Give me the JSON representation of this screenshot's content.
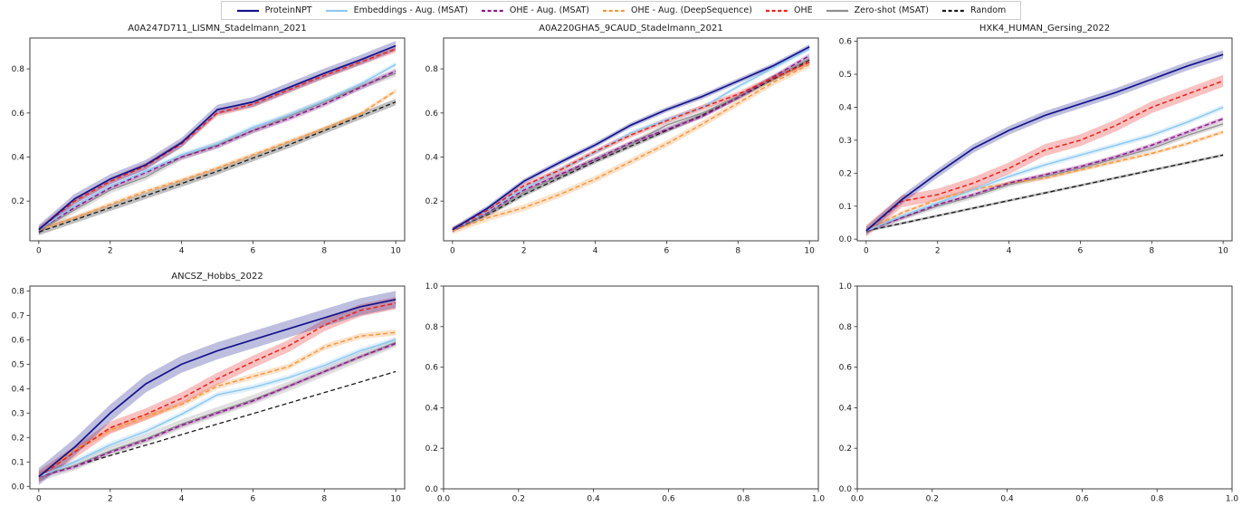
{
  "figure": {
    "background": "#ffffff",
    "text_color": "#1a1a1a",
    "spine_color": "#3d3d3d"
  },
  "legend": {
    "position": "top-center",
    "border_color": "#cccccc",
    "items": [
      {
        "label": "ProteinNPT",
        "color": "#14148c",
        "dash": false
      },
      {
        "label": "Embeddings - Aug. (MSAT)",
        "color": "#8ec9f2",
        "dash": false
      },
      {
        "label": "OHE - Aug. (MSAT)",
        "color": "#8b1a8b",
        "dash": true
      },
      {
        "label": "OHE - Aug. (DeepSequence)",
        "color": "#f8973f",
        "dash": true
      },
      {
        "label": "OHE",
        "color": "#e8221e",
        "dash": true
      },
      {
        "label": "Zero-shot (MSAT)",
        "color": "#8f8f8f",
        "dash": false
      },
      {
        "label": "Random",
        "color": "#1a1a1a",
        "dash": true
      }
    ]
  },
  "chart_data": [
    {
      "type": "line",
      "title": "A0A247D711_LISMN_Stadelmann_2021",
      "x": [
        0,
        1,
        2,
        3,
        4,
        5,
        6,
        7,
        8,
        9,
        10
      ],
      "xlim": [
        -0.25,
        10.25
      ],
      "ylim": [
        0.02,
        0.94
      ],
      "xticks": [
        0,
        2,
        4,
        6,
        8,
        10
      ],
      "xtick_labels": [
        "0",
        "2",
        "4",
        "6",
        "8",
        "10"
      ],
      "yticks": [
        0.2,
        0.4,
        0.6,
        0.8
      ],
      "ytick_labels": [
        "0.2",
        "0.4",
        "0.6",
        "0.8"
      ],
      "grid": false,
      "series": [
        {
          "name": "Random",
          "color": "#1a1a1a",
          "dash": true,
          "width": 1.3,
          "band": 0.015,
          "values": [
            0.06,
            0.115,
            0.17,
            0.225,
            0.28,
            0.335,
            0.395,
            0.455,
            0.52,
            0.585,
            0.65
          ]
        },
        {
          "name": "Zero-shot (MSAT)",
          "color": "#8f8f8f",
          "dash": false,
          "width": 1.3,
          "band": 0.015,
          "values": [
            0.065,
            0.16,
            0.25,
            0.31,
            0.4,
            0.455,
            0.52,
            0.585,
            0.65,
            0.72,
            0.78
          ]
        },
        {
          "name": "OHE - Aug. (DeepSequence)",
          "color": "#f8973f",
          "dash": true,
          "width": 1.5,
          "band": 0.01,
          "values": [
            0.07,
            0.125,
            0.185,
            0.245,
            0.295,
            0.35,
            0.41,
            0.47,
            0.53,
            0.595,
            0.7
          ]
        },
        {
          "name": "OHE - Aug. (MSAT)",
          "color": "#8b1a8b",
          "dash": true,
          "width": 1.5,
          "band": 0.012,
          "values": [
            0.07,
            0.17,
            0.26,
            0.33,
            0.4,
            0.45,
            0.52,
            0.575,
            0.64,
            0.715,
            0.79
          ]
        },
        {
          "name": "Embeddings - Aug. (MSAT)",
          "color": "#8ec9f2",
          "dash": false,
          "width": 1.5,
          "band": 0.012,
          "values": [
            0.07,
            0.18,
            0.27,
            0.335,
            0.41,
            0.46,
            0.535,
            0.59,
            0.655,
            0.73,
            0.82
          ]
        },
        {
          "name": "OHE",
          "color": "#e8221e",
          "dash": true,
          "width": 1.5,
          "band": 0.015,
          "values": [
            0.07,
            0.2,
            0.29,
            0.36,
            0.46,
            0.6,
            0.64,
            0.705,
            0.77,
            0.83,
            0.89
          ]
        },
        {
          "name": "ProteinNPT",
          "color": "#14148c",
          "dash": false,
          "width": 1.7,
          "band": 0.022,
          "values": [
            0.07,
            0.21,
            0.3,
            0.365,
            0.465,
            0.615,
            0.65,
            0.715,
            0.78,
            0.84,
            0.905
          ]
        }
      ]
    },
    {
      "type": "line",
      "title": "A0A220GHA5_9CAUD_Stadelmann_2021",
      "x": [
        0,
        1,
        2,
        3,
        4,
        5,
        6,
        7,
        8,
        9,
        10
      ],
      "xlim": [
        -0.25,
        10.25
      ],
      "ylim": [
        0.02,
        0.94
      ],
      "xticks": [
        0,
        2,
        4,
        6,
        8,
        10
      ],
      "xtick_labels": [
        "0",
        "2",
        "4",
        "6",
        "8",
        "10"
      ],
      "yticks": [
        0.2,
        0.4,
        0.6,
        0.8
      ],
      "ytick_labels": [
        "0.2",
        "0.4",
        "0.6",
        "0.8"
      ],
      "grid": false,
      "series": [
        {
          "name": "Random",
          "color": "#1a1a1a",
          "dash": true,
          "width": 1.3,
          "band": 0.01,
          "values": [
            0.07,
            0.14,
            0.23,
            0.305,
            0.38,
            0.45,
            0.52,
            0.59,
            0.67,
            0.755,
            0.84
          ]
        },
        {
          "name": "Zero-shot (MSAT)",
          "color": "#8f8f8f",
          "dash": false,
          "width": 1.3,
          "band": 0.012,
          "values": [
            0.07,
            0.145,
            0.24,
            0.315,
            0.39,
            0.46,
            0.545,
            0.6,
            0.675,
            0.76,
            0.845
          ]
        },
        {
          "name": "OHE - Aug. (DeepSequence)",
          "color": "#f8973f",
          "dash": true,
          "width": 1.5,
          "band": 0.015,
          "values": [
            0.065,
            0.125,
            0.17,
            0.23,
            0.3,
            0.38,
            0.46,
            0.55,
            0.645,
            0.74,
            0.82
          ]
        },
        {
          "name": "OHE - Aug. (MSAT)",
          "color": "#8b1a8b",
          "dash": true,
          "width": 1.5,
          "band": 0.01,
          "values": [
            0.07,
            0.15,
            0.25,
            0.32,
            0.39,
            0.465,
            0.525,
            0.585,
            0.67,
            0.765,
            0.86
          ]
        },
        {
          "name": "Embeddings - Aug. (MSAT)",
          "color": "#8ec9f2",
          "dash": false,
          "width": 1.5,
          "band": 0.01,
          "values": [
            0.07,
            0.155,
            0.26,
            0.34,
            0.42,
            0.51,
            0.57,
            0.625,
            0.72,
            0.805,
            0.89
          ]
        },
        {
          "name": "OHE",
          "color": "#e8221e",
          "dash": true,
          "width": 1.5,
          "band": 0.012,
          "values": [
            0.07,
            0.16,
            0.27,
            0.34,
            0.425,
            0.5,
            0.565,
            0.625,
            0.685,
            0.76,
            0.83
          ]
        },
        {
          "name": "ProteinNPT",
          "color": "#14148c",
          "dash": false,
          "width": 1.7,
          "band": 0.012,
          "values": [
            0.07,
            0.17,
            0.29,
            0.375,
            0.455,
            0.545,
            0.615,
            0.675,
            0.745,
            0.815,
            0.9
          ]
        }
      ]
    },
    {
      "type": "line",
      "title": "HXK4_HUMAN_Gersing_2022",
      "x": [
        0,
        1,
        2,
        3,
        4,
        5,
        6,
        7,
        8,
        9,
        10
      ],
      "xlim": [
        -0.25,
        10.25
      ],
      "ylim": [
        -0.005,
        0.61
      ],
      "xticks": [
        0,
        2,
        4,
        6,
        8,
        10
      ],
      "xtick_labels": [
        "0",
        "2",
        "4",
        "6",
        "8",
        "10"
      ],
      "yticks": [
        0.0,
        0.1,
        0.2,
        0.3,
        0.4,
        0.5,
        0.6
      ],
      "ytick_labels": [
        "0.0",
        "0.1",
        "0.2",
        "0.3",
        "0.4",
        "0.5",
        "0.6"
      ],
      "grid": false,
      "series": [
        {
          "name": "Random",
          "color": "#1a1a1a",
          "dash": true,
          "width": 1.3,
          "band": 0.004,
          "values": [
            0.025,
            0.048,
            0.071,
            0.094,
            0.117,
            0.14,
            0.163,
            0.186,
            0.209,
            0.232,
            0.255
          ]
        },
        {
          "name": "Zero-shot (MSAT)",
          "color": "#8f8f8f",
          "dash": false,
          "width": 1.3,
          "band": 0.008,
          "values": [
            0.025,
            0.065,
            0.1,
            0.13,
            0.165,
            0.19,
            0.215,
            0.245,
            0.275,
            0.315,
            0.35
          ]
        },
        {
          "name": "OHE - Aug. (DeepSequence)",
          "color": "#f8973f",
          "dash": true,
          "width": 1.5,
          "band": 0.006,
          "values": [
            0.025,
            0.08,
            0.12,
            0.15,
            0.17,
            0.185,
            0.21,
            0.235,
            0.26,
            0.29,
            0.325
          ]
        },
        {
          "name": "OHE - Aug. (MSAT)",
          "color": "#8b1a8b",
          "dash": true,
          "width": 1.5,
          "band": 0.006,
          "values": [
            0.025,
            0.065,
            0.105,
            0.135,
            0.17,
            0.195,
            0.22,
            0.25,
            0.285,
            0.325,
            0.365
          ]
        },
        {
          "name": "Embeddings - Aug. (MSAT)",
          "color": "#8ec9f2",
          "dash": false,
          "width": 1.5,
          "band": 0.008,
          "values": [
            0.025,
            0.07,
            0.11,
            0.15,
            0.19,
            0.225,
            0.255,
            0.285,
            0.315,
            0.355,
            0.4
          ]
        },
        {
          "name": "OHE",
          "color": "#e8221e",
          "dash": true,
          "width": 1.5,
          "band": 0.018,
          "values": [
            0.025,
            0.115,
            0.135,
            0.17,
            0.215,
            0.27,
            0.3,
            0.345,
            0.4,
            0.44,
            0.48
          ]
        },
        {
          "name": "ProteinNPT",
          "color": "#14148c",
          "dash": false,
          "width": 1.7,
          "band": 0.013,
          "values": [
            0.025,
            0.12,
            0.2,
            0.275,
            0.33,
            0.375,
            0.41,
            0.445,
            0.485,
            0.525,
            0.56
          ]
        }
      ]
    },
    {
      "type": "line",
      "title": "ANCSZ_Hobbs_2022",
      "x": [
        0,
        1,
        2,
        3,
        4,
        5,
        6,
        7,
        8,
        9,
        10
      ],
      "xlim": [
        -0.25,
        10.25
      ],
      "ylim": [
        -0.01,
        0.82
      ],
      "xticks": [
        0,
        2,
        4,
        6,
        8,
        10
      ],
      "xtick_labels": [
        "0",
        "2",
        "4",
        "6",
        "8",
        "10"
      ],
      "yticks": [
        0.0,
        0.1,
        0.2,
        0.3,
        0.4,
        0.5,
        0.6,
        0.7,
        0.8
      ],
      "ytick_labels": [
        "0.0",
        "0.1",
        "0.2",
        "0.3",
        "0.4",
        "0.5",
        "0.6",
        "0.7",
        "0.8"
      ],
      "grid": false,
      "series": [
        {
          "name": "Random",
          "color": "#1a1a1a",
          "dash": true,
          "width": 1.3,
          "band": 0,
          "values": [
            0.04,
            0.083,
            0.126,
            0.169,
            0.212,
            0.255,
            0.298,
            0.341,
            0.384,
            0.427,
            0.47
          ]
        },
        {
          "name": "Zero-shot (MSAT)",
          "color": "#8f8f8f",
          "dash": false,
          "width": 1.3,
          "band": 0.02,
          "values": [
            0.04,
            0.085,
            0.145,
            0.195,
            0.255,
            0.305,
            0.355,
            0.41,
            0.47,
            0.53,
            0.59
          ]
        },
        {
          "name": "OHE - Aug. (MSAT)",
          "color": "#8b1a8b",
          "dash": true,
          "width": 1.5,
          "band": 0.008,
          "values": [
            0.04,
            0.08,
            0.14,
            0.19,
            0.25,
            0.3,
            0.35,
            0.41,
            0.47,
            0.53,
            0.585
          ]
        },
        {
          "name": "Embeddings - Aug. (MSAT)",
          "color": "#8ec9f2",
          "dash": false,
          "width": 1.5,
          "band": 0.012,
          "values": [
            0.04,
            0.1,
            0.17,
            0.225,
            0.295,
            0.375,
            0.405,
            0.445,
            0.495,
            0.555,
            0.6
          ]
        },
        {
          "name": "OHE - Aug. (DeepSequence)",
          "color": "#f8973f",
          "dash": true,
          "width": 1.5,
          "band": 0.012,
          "values": [
            0.04,
            0.15,
            0.23,
            0.285,
            0.335,
            0.41,
            0.45,
            0.49,
            0.57,
            0.615,
            0.63
          ]
        },
        {
          "name": "OHE",
          "color": "#e8221e",
          "dash": true,
          "width": 1.5,
          "band": 0.025,
          "values": [
            0.04,
            0.14,
            0.24,
            0.295,
            0.36,
            0.44,
            0.51,
            0.575,
            0.66,
            0.72,
            0.75
          ]
        },
        {
          "name": "ProteinNPT",
          "color": "#14148c",
          "dash": false,
          "width": 1.7,
          "band": 0.035,
          "values": [
            0.04,
            0.16,
            0.3,
            0.42,
            0.5,
            0.555,
            0.6,
            0.645,
            0.69,
            0.735,
            0.765
          ]
        }
      ]
    },
    {
      "type": "line",
      "title": "",
      "x": [],
      "xlim": [
        0,
        1
      ],
      "ylim": [
        0,
        1
      ],
      "xticks": [
        0,
        0.2,
        0.4,
        0.6,
        0.8,
        1.0
      ],
      "xtick_labels": [
        "0.0",
        "0.2",
        "0.4",
        "0.6",
        "0.8",
        "1.0"
      ],
      "yticks": [
        0,
        0.2,
        0.4,
        0.6,
        0.8,
        1.0
      ],
      "ytick_labels": [
        "0.0",
        "0.2",
        "0.4",
        "0.6",
        "0.8",
        "1.0"
      ],
      "grid": false,
      "series": []
    },
    {
      "type": "line",
      "title": "",
      "x": [],
      "xlim": [
        0,
        1
      ],
      "ylim": [
        0,
        1
      ],
      "xticks": [
        0,
        0.2,
        0.4,
        0.6,
        0.8,
        1.0
      ],
      "xtick_labels": [
        "0.0",
        "0.2",
        "0.4",
        "0.6",
        "0.8",
        "1.0"
      ],
      "yticks": [
        0,
        0.2,
        0.4,
        0.6,
        0.8,
        1.0
      ],
      "ytick_labels": [
        "0.0",
        "0.2",
        "0.4",
        "0.6",
        "0.8",
        "1.0"
      ],
      "grid": false,
      "series": []
    }
  ]
}
